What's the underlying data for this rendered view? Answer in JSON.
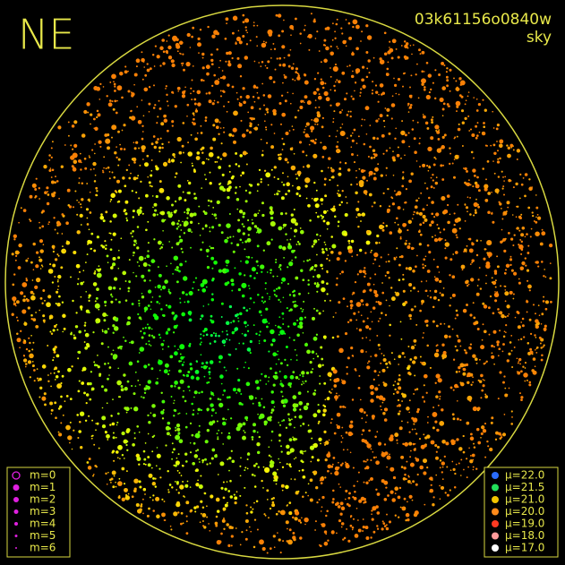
{
  "corner_label": "NE",
  "frame_id": "03k61156o0840w",
  "mode": "sky",
  "magnitude_legend": [
    "m=0",
    "m=1",
    "m=2",
    "m=3",
    "m=4",
    "m=5",
    "m=6"
  ],
  "brightness_legend": [
    {
      "label": "μ=22.0",
      "color": "#2a6cff"
    },
    {
      "label": "μ=21.5",
      "color": "#22e05a"
    },
    {
      "label": "μ=21.0",
      "color": "#f2c400"
    },
    {
      "label": "μ=20.0",
      "color": "#ff8a1a"
    },
    {
      "label": "μ=19.0",
      "color": "#ff3a22"
    },
    {
      "label": "μ=18.0",
      "color": "#ff9a9a"
    },
    {
      "label": "μ=17.0",
      "color": "#ffffff"
    }
  ]
}
